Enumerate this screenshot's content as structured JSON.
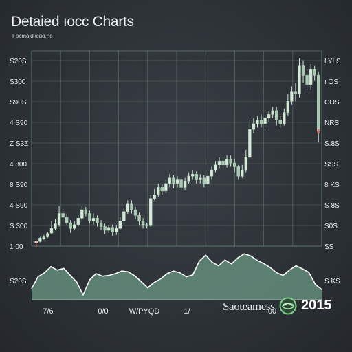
{
  "header": {
    "title": "Detaied ıocc Charts",
    "subtitle": "Focmaid ɩcɑɑ.no"
  },
  "footer": {
    "brand": "Saoteamess",
    "year": "2015"
  },
  "colors": {
    "candle": "#d8e8da",
    "candle_edge": "#b9d9c0",
    "wick": "#cfe6d4",
    "green_accent": "#8fd29a",
    "red_accent": "#e06a6a",
    "grid": "#6f8a7a",
    "area_fill": "#6b9a86",
    "area_line": "#ffffff",
    "text": "#e6ecee"
  },
  "chart_data": [
    {
      "type": "candlestick",
      "title": "Detaied ıocc Charts",
      "subtitle": "Focmaid ɩcɑɑ.no",
      "grid": true,
      "ylim": [
        0,
        10
      ],
      "y_left_ticks": [
        "S20S",
        "S300",
        "S90S",
        "4 S90",
        "Z S3Z",
        "4 800",
        "8 S90",
        "4 S90",
        "S 300",
        "1 00"
      ],
      "y_right_ticks": [
        "LYLS",
        "ı OS",
        "COS",
        "NRS",
        "S.8S",
        "SSS",
        "8 KS",
        "S 8S",
        "S0S",
        "SS"
      ],
      "candles": [
        [
          0.05,
          0.1,
          0.0,
          0.15
        ],
        [
          0.1,
          0.28,
          0.05,
          0.35
        ],
        [
          0.25,
          0.35,
          0.18,
          0.45
        ],
        [
          0.35,
          0.52,
          0.3,
          0.6
        ],
        [
          0.55,
          0.8,
          0.5,
          1.2
        ],
        [
          0.8,
          1.05,
          0.7,
          1.3
        ],
        [
          1.0,
          1.6,
          0.9,
          2.0
        ],
        [
          1.6,
          1.4,
          1.25,
          1.75
        ],
        [
          1.4,
          1.1,
          0.95,
          1.55
        ],
        [
          1.1,
          0.8,
          0.55,
          1.25
        ],
        [
          0.8,
          1.0,
          0.7,
          1.2
        ],
        [
          1.0,
          1.35,
          0.9,
          1.5
        ],
        [
          1.35,
          1.8,
          1.2,
          2.0
        ],
        [
          1.8,
          1.6,
          1.45,
          1.95
        ],
        [
          1.6,
          1.2,
          1.05,
          1.75
        ],
        [
          1.2,
          1.35,
          1.0,
          1.6
        ],
        [
          1.35,
          1.1,
          0.9,
          1.5
        ],
        [
          1.1,
          0.9,
          0.7,
          1.25
        ],
        [
          0.9,
          0.7,
          0.5,
          1.05
        ],
        [
          0.7,
          0.85,
          0.55,
          1.0
        ],
        [
          0.85,
          0.6,
          0.4,
          1.0
        ],
        [
          0.6,
          0.8,
          0.45,
          1.0
        ],
        [
          0.8,
          1.2,
          0.7,
          1.4
        ],
        [
          1.2,
          1.7,
          1.1,
          1.9
        ],
        [
          1.7,
          2.1,
          1.55,
          2.3
        ],
        [
          2.1,
          1.8,
          1.6,
          2.3
        ],
        [
          1.8,
          1.5,
          1.3,
          1.95
        ],
        [
          1.5,
          1.2,
          0.95,
          1.65
        ],
        [
          1.2,
          1.0,
          0.8,
          1.35
        ],
        [
          1.0,
          0.95,
          0.8,
          1.1
        ],
        [
          0.95,
          2.4,
          0.9,
          2.6
        ],
        [
          2.4,
          2.6,
          2.3,
          2.9
        ],
        [
          2.6,
          3.0,
          2.5,
          3.2
        ],
        [
          3.0,
          2.8,
          2.6,
          3.15
        ],
        [
          2.8,
          3.2,
          2.7,
          3.4
        ],
        [
          3.2,
          3.5,
          3.0,
          3.7
        ],
        [
          3.5,
          3.2,
          2.95,
          3.65
        ],
        [
          3.2,
          3.4,
          3.0,
          3.6
        ],
        [
          3.4,
          3.0,
          2.75,
          3.55
        ],
        [
          3.0,
          3.3,
          2.85,
          3.5
        ],
        [
          3.3,
          3.6,
          3.2,
          3.8
        ],
        [
          3.6,
          3.7,
          3.4,
          3.9
        ],
        [
          3.7,
          3.4,
          3.2,
          3.85
        ],
        [
          3.4,
          3.5,
          3.2,
          3.7
        ],
        [
          3.5,
          3.2,
          3.0,
          3.65
        ],
        [
          3.2,
          3.6,
          3.1,
          3.8
        ],
        [
          3.6,
          3.9,
          3.4,
          4.1
        ],
        [
          3.9,
          4.2,
          3.8,
          4.4
        ],
        [
          4.2,
          4.4,
          4.0,
          4.6
        ],
        [
          4.4,
          4.2,
          4.0,
          4.6
        ],
        [
          4.2,
          4.5,
          4.05,
          4.7
        ],
        [
          4.5,
          4.3,
          4.1,
          4.7
        ],
        [
          4.3,
          4.1,
          3.8,
          4.5
        ],
        [
          4.1,
          3.6,
          3.4,
          4.2
        ],
        [
          3.6,
          3.9,
          3.5,
          4.2
        ],
        [
          3.9,
          4.6,
          3.8,
          5.0
        ],
        [
          4.6,
          6.1,
          4.5,
          6.6
        ],
        [
          6.1,
          6.4,
          5.9,
          6.7
        ],
        [
          6.4,
          6.6,
          6.2,
          6.8
        ],
        [
          6.6,
          6.4,
          6.2,
          6.9
        ],
        [
          6.4,
          6.7,
          6.2,
          6.9
        ],
        [
          6.7,
          6.9,
          6.5,
          7.1
        ],
        [
          6.9,
          7.1,
          6.7,
          7.3
        ],
        [
          7.1,
          6.6,
          6.3,
          7.3
        ],
        [
          6.6,
          6.4,
          6.2,
          6.8
        ],
        [
          6.4,
          7.0,
          6.3,
          7.2
        ],
        [
          7.0,
          7.6,
          6.8,
          8.0
        ],
        [
          7.6,
          8.1,
          7.4,
          8.4
        ],
        [
          8.1,
          8.0,
          7.6,
          8.6
        ],
        [
          8.0,
          9.5,
          7.8,
          9.9
        ],
        [
          9.5,
          9.0,
          8.6,
          9.8
        ],
        [
          9.0,
          8.5,
          8.2,
          9.3
        ],
        [
          8.5,
          9.3,
          8.2,
          9.6
        ],
        [
          9.3,
          9.0,
          8.7,
          9.5
        ],
        [
          9.0,
          6.0,
          5.4,
          9.2
        ]
      ]
    },
    {
      "type": "area",
      "ylim": [
        0,
        10
      ],
      "y_left_ticks": [
        "S20S"
      ],
      "y_right_ticks": [
        "S.KS"
      ],
      "x_tick_labels": [
        "7/6",
        "0/0",
        "W/PYQD",
        "1/",
        "00"
      ],
      "values": [
        1.6,
        4.3,
        5.2,
        6.6,
        5.8,
        6.2,
        4.6,
        3.1,
        0.2,
        3.6,
        5.0,
        4.4,
        4.6,
        5.0,
        5.6,
        5.4,
        4.5,
        3.2,
        1.8,
        3.0,
        3.8,
        5.0,
        5.6,
        5.2,
        4.3,
        4.7,
        7.8,
        9.2,
        7.6,
        6.8,
        8.1,
        7.2,
        8.6,
        9.5,
        9.0,
        8.0,
        7.3,
        6.4,
        5.2,
        4.6,
        5.8,
        6.8,
        6.1,
        5.3,
        2.6,
        1.4
      ]
    }
  ]
}
